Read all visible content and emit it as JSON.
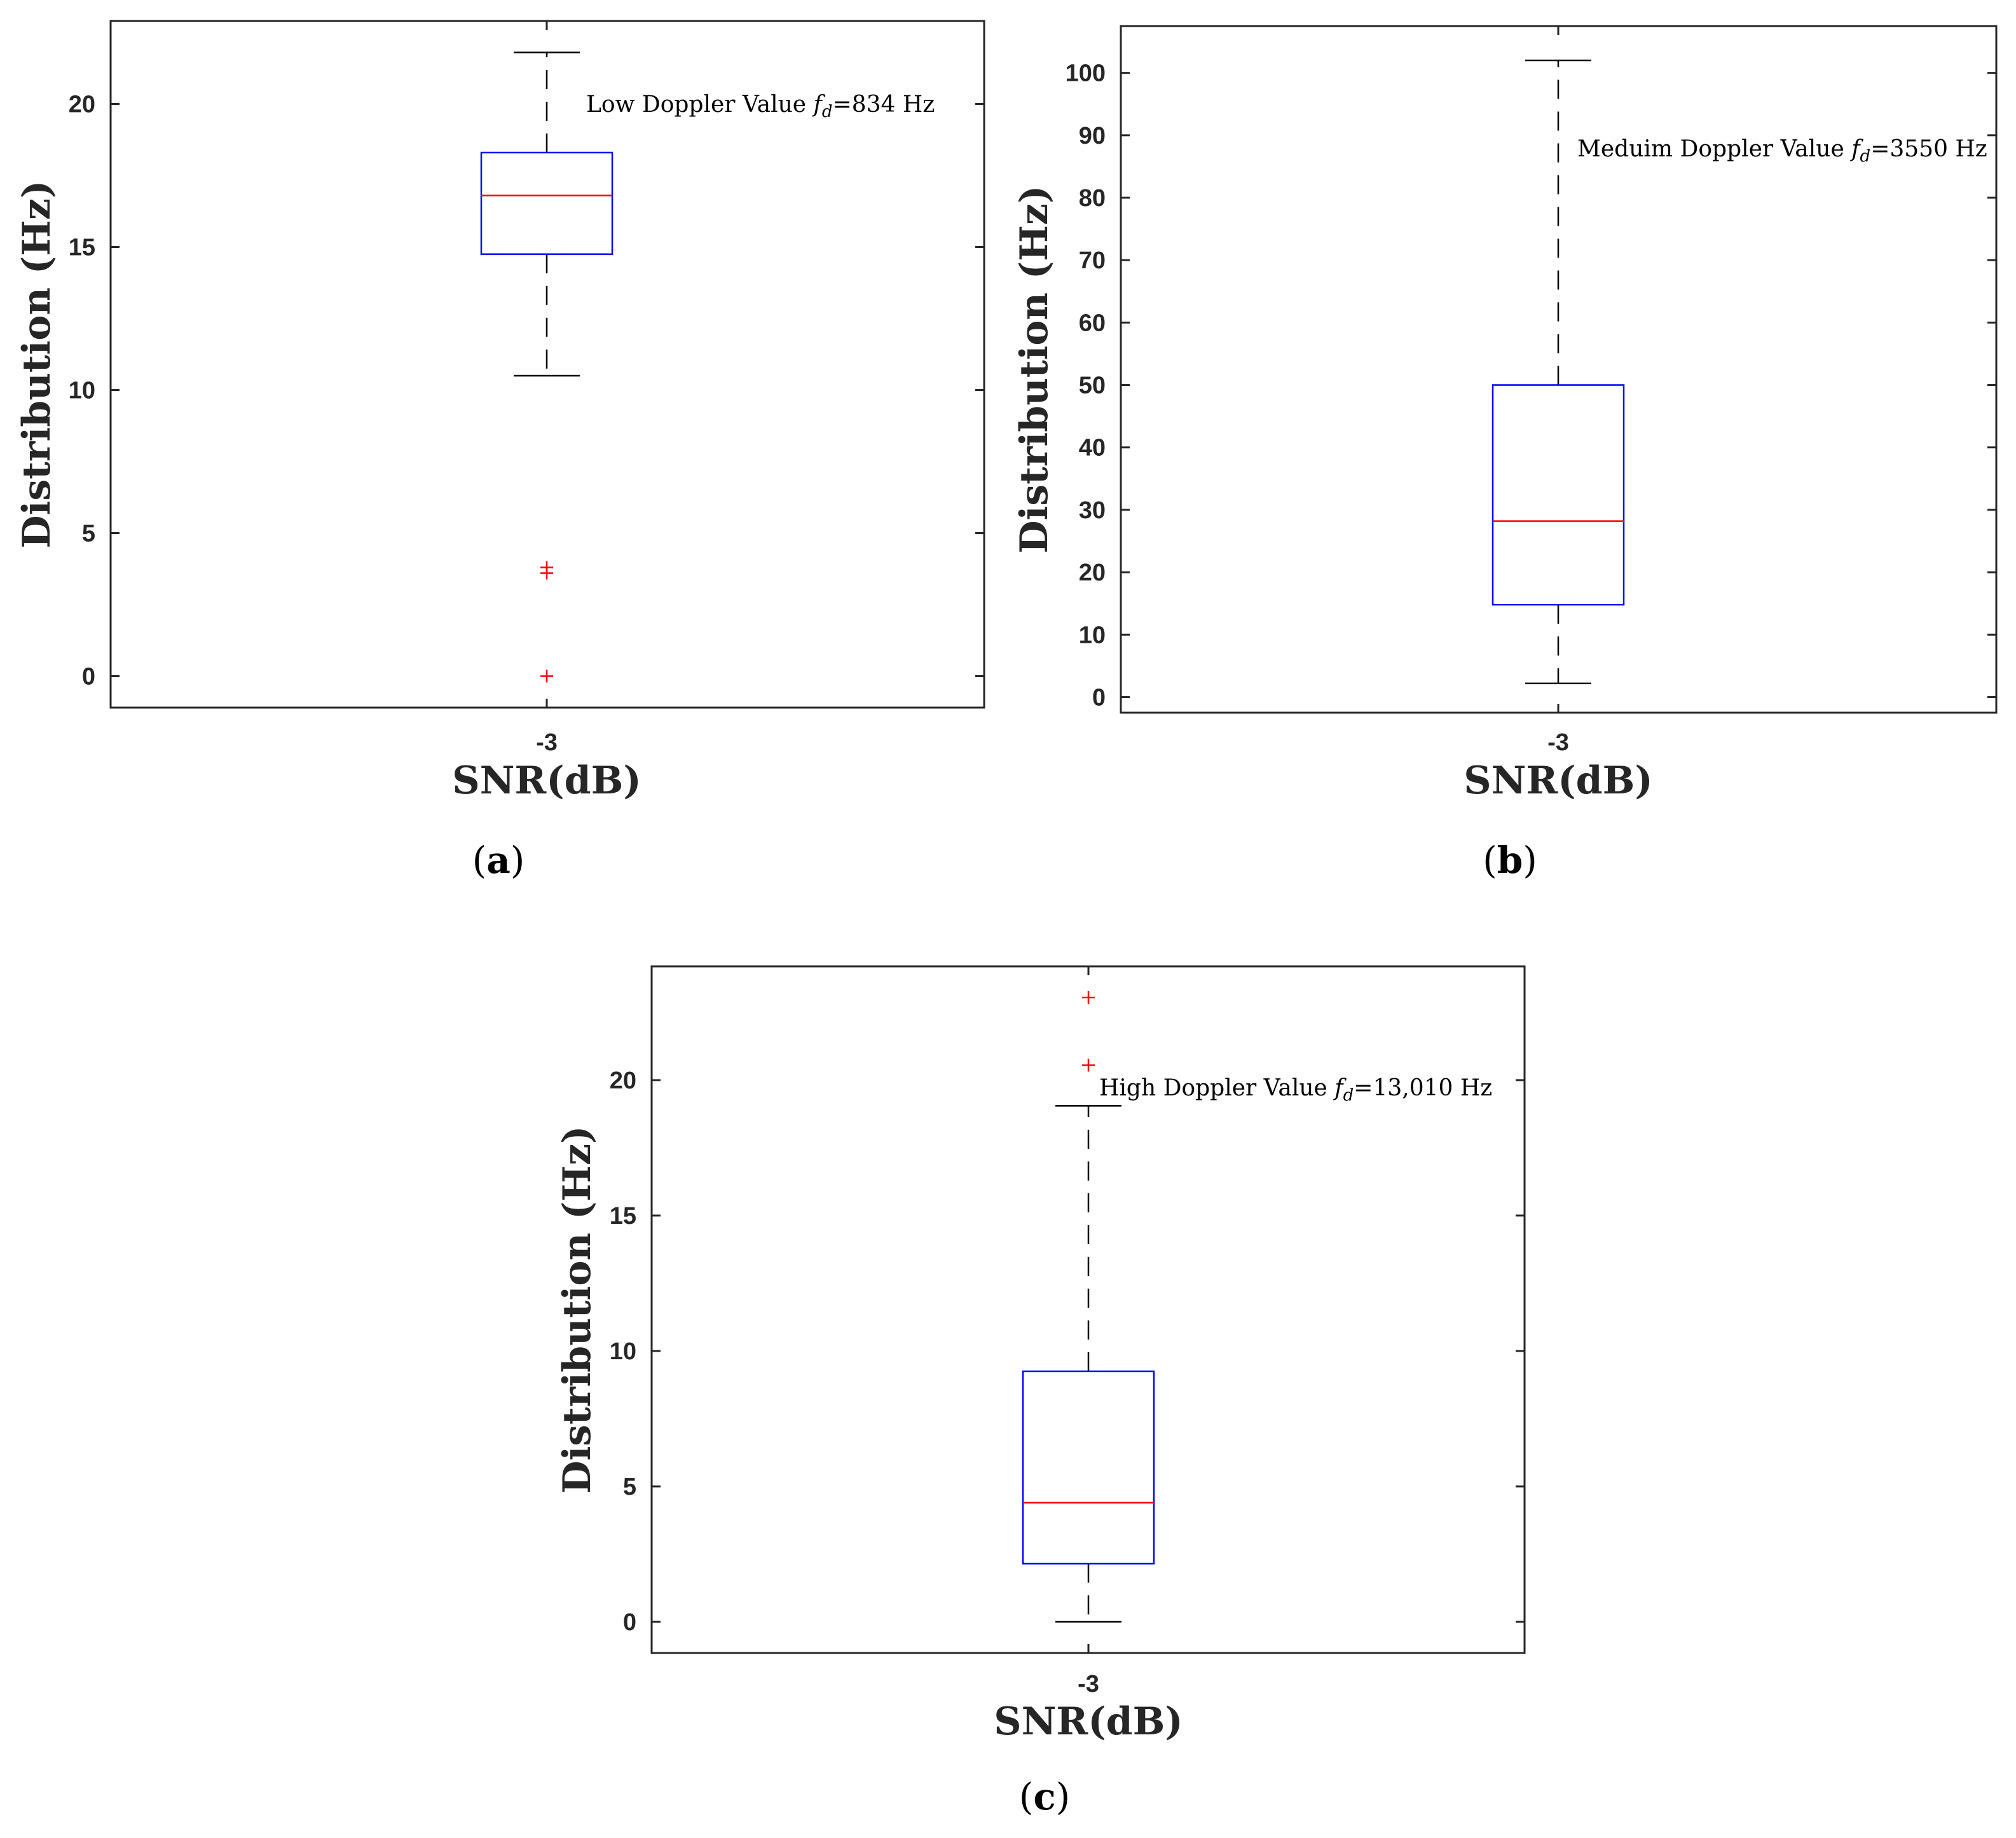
{
  "chart_data": [
    {
      "type": "box",
      "panel_label": "a",
      "categories": [
        "-3"
      ],
      "xlabel": "SNR(dB)",
      "ylabel": "Distribution (Hz)",
      "ylim": [
        -1.1,
        22.9
      ],
      "yticks": [
        0,
        5,
        10,
        15,
        20
      ],
      "annotation": {
        "prefix": "Low Doppler Value ",
        "symbol": "f",
        "subscript": "d",
        "suffix": "=834 Hz"
      },
      "box": {
        "whisker_low": 10.5,
        "q1": 14.75,
        "median": 16.8,
        "q3": 18.3,
        "whisker_high": 21.8
      },
      "outliers": [
        3.6,
        3.8,
        0.0
      ],
      "colors": {
        "box": "#0000ff",
        "median": "#ff0000",
        "outlier": "#ff0000",
        "whisker": "#000000",
        "axis": "#262626"
      }
    },
    {
      "type": "box",
      "panel_label": "b",
      "categories": [
        "-3"
      ],
      "xlabel": "SNR(dB)",
      "ylabel": "Distribution (Hz)",
      "ylim": [
        -2.5,
        107.5
      ],
      "yticks": [
        0,
        10,
        20,
        30,
        40,
        50,
        60,
        70,
        80,
        90,
        100
      ],
      "annotation": {
        "prefix": "Meduim Doppler Value ",
        "symbol": "f",
        "subscript": "d",
        "suffix": "=3550 Hz"
      },
      "box": {
        "whisker_low": 2.2,
        "q1": 14.8,
        "median": 28.2,
        "q3": 50.0,
        "whisker_high": 102.0
      },
      "outliers": [],
      "colors": {
        "box": "#0000ff",
        "median": "#ff0000",
        "outlier": "#ff0000",
        "whisker": "#000000",
        "axis": "#262626"
      }
    },
    {
      "type": "box",
      "panel_label": "c",
      "categories": [
        "-3"
      ],
      "xlabel": "SNR(dB)",
      "ylabel": "Distribution (Hz)",
      "ylim": [
        -1.15,
        24.2
      ],
      "yticks": [
        0,
        5,
        10,
        15,
        20
      ],
      "annotation": {
        "prefix": "High Doppler Value ",
        "symbol": "f",
        "subscript": "d",
        "suffix": "=13,010 Hz"
      },
      "box": {
        "whisker_low": 0.0,
        "q1": 2.15,
        "median": 4.4,
        "q3": 9.25,
        "whisker_high": 19.05
      },
      "outliers": [
        23.05,
        20.55
      ],
      "colors": {
        "box": "#0000ff",
        "median": "#ff0000",
        "outlier": "#ff0000",
        "whisker": "#000000",
        "axis": "#262626"
      }
    }
  ]
}
